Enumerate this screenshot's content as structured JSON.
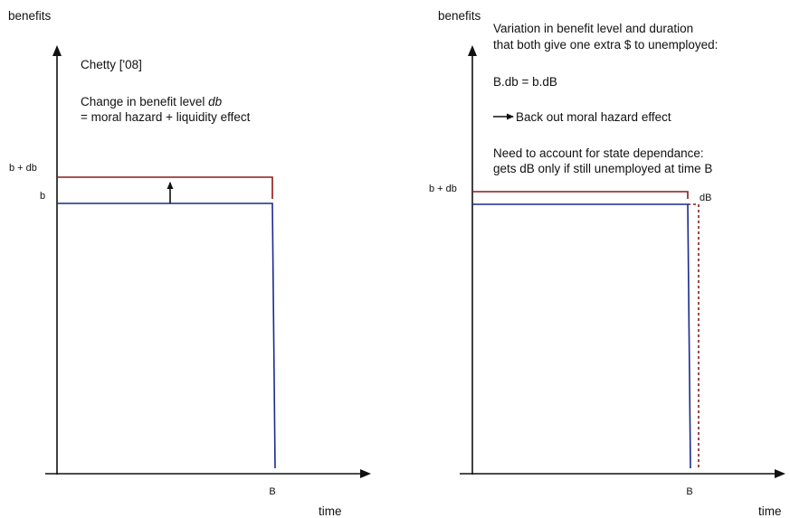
{
  "colors": {
    "axis": "#111111",
    "benefit_base": "#1a2a8c",
    "benefit_raised": "#8b1a1a"
  },
  "left_panel": {
    "y_axis_label": "benefits",
    "x_axis_label": "time",
    "b_label": "b",
    "b_plus_db_label": "b + db",
    "B_label": "B",
    "title": "Chetty ['08]",
    "note_line1_prefix": "Change in benefit level ",
    "note_line1_italic": "db",
    "note_line2": "= moral hazard + liquidity effect"
  },
  "right_panel": {
    "y_axis_label": "benefits",
    "x_axis_label": "time",
    "b_plus_db_label": "b + db",
    "dB_label": "dB",
    "B_label": "B",
    "text_line1": "Variation in benefit level and duration",
    "text_line2": "that both give one extra $ to unemployed:",
    "equation": "B.db = b.dB",
    "arrow_text": "Back out moral hazard effect",
    "state_line1": "Need to account for state dependance:",
    "state_line2": "gets dB only if still unemployed at time B"
  }
}
